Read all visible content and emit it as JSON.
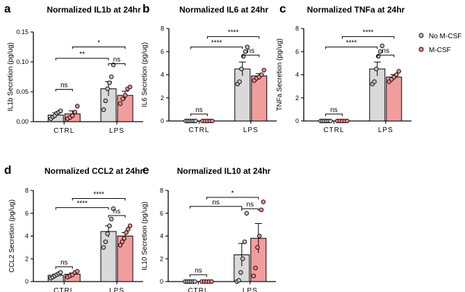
{
  "panels_colors": {
    "no_mcsf_bar": "#d9d9d9",
    "mcsf_bar": "#f29d9d",
    "no_mcsf_dot": "#bfbfbf",
    "mcsf_dot": "#f08a8a",
    "stroke": "#000000"
  },
  "legend": {
    "items": [
      {
        "label": "No M-CSF",
        "color": "#bfbfbf"
      },
      {
        "label": "M-CSF",
        "color": "#f08a8a"
      }
    ]
  },
  "chart_data": [
    {
      "panel": "a",
      "type": "bar",
      "title": "Normalized IL1b at 24hr",
      "ylabel": "IL1b Secretion (pg/ug)",
      "ylim": [
        0,
        0.15
      ],
      "yticks": [
        0,
        0.05,
        0.1,
        0.15
      ],
      "ytick_labels": [
        "0.00",
        "0.05",
        "0.10",
        "0.15"
      ],
      "categories": [
        "CTRL",
        "LPS"
      ],
      "series": [
        {
          "name": "No M-CSF",
          "means": [
            0.011,
            0.055
          ],
          "sem": [
            0.004,
            0.012
          ],
          "points": [
            [
              0.005,
              0.008,
              0.01,
              0.014,
              0.016,
              0.018
            ],
            [
              0.02,
              0.035,
              0.055,
              0.065,
              0.075,
              0.095
            ]
          ]
        },
        {
          "name": "M-CSF",
          "means": [
            0.013,
            0.044
          ],
          "sem": [
            0.005,
            0.007
          ],
          "points": [
            [
              0.005,
              0.007,
              0.01,
              0.016,
              0.026
            ],
            [
              0.03,
              0.038,
              0.044,
              0.055,
              0.058
            ]
          ]
        }
      ],
      "comparisons": [
        {
          "label": "ns",
          "level": 0.054,
          "from": [
            0,
            0
          ],
          "to": [
            0,
            1
          ]
        },
        {
          "label": "ns",
          "level": 0.097,
          "from": [
            1,
            0
          ],
          "to": [
            1,
            1
          ]
        },
        {
          "label": "**",
          "level": 0.106,
          "from": [
            0,
            0
          ],
          "to": [
            1,
            0
          ]
        },
        {
          "label": "*",
          "level": 0.125,
          "from": [
            0,
            1
          ],
          "to": [
            1,
            1
          ]
        }
      ]
    },
    {
      "panel": "b",
      "type": "bar",
      "title": "Normalized IL6 at 24hr",
      "ylabel": "IL6 Secretion (pg/ug)",
      "ylim": [
        0,
        8
      ],
      "yticks": [
        0,
        2,
        4,
        6,
        8
      ],
      "ytick_labels": [
        "0",
        "2",
        "4",
        "6",
        "8"
      ],
      "categories": [
        "CTRL",
        "LPS"
      ],
      "series": [
        {
          "name": "No M-CSF",
          "means": [
            0.0,
            4.5
          ],
          "sem": [
            0.0,
            0.6
          ],
          "points": [
            [
              0,
              0,
              0,
              0,
              0,
              0
            ],
            [
              3.2,
              3.4,
              4.5,
              5.6,
              6.0,
              6.4
            ]
          ]
        },
        {
          "name": "M-CSF",
          "means": [
            0.0,
            3.9
          ],
          "sem": [
            0.0,
            0.2
          ],
          "points": [
            [
              0,
              0,
              0,
              0,
              0
            ],
            [
              3.5,
              3.7,
              3.8,
              4.0,
              4.4
            ]
          ]
        }
      ],
      "comparisons": [
        {
          "label": "ns",
          "level": 0.6,
          "from": [
            0,
            0
          ],
          "to": [
            0,
            1
          ]
        },
        {
          "label": "ns",
          "level": 5.7,
          "from": [
            1,
            0
          ],
          "to": [
            1,
            1
          ]
        },
        {
          "label": "****",
          "level": 6.4,
          "from": [
            0,
            0
          ],
          "to": [
            1,
            0
          ]
        },
        {
          "label": "****",
          "level": 7.3,
          "from": [
            0,
            1
          ],
          "to": [
            1,
            1
          ]
        }
      ]
    },
    {
      "panel": "c",
      "type": "bar",
      "title": "Normalized TNFa at 24hr",
      "ylabel": "TNFa Secretion (pg/ug)",
      "ylim": [
        0,
        8
      ],
      "yticks": [
        0,
        2,
        4,
        6,
        8
      ],
      "ytick_labels": [
        "0",
        "2",
        "4",
        "6",
        "8"
      ],
      "categories": [
        "CTRL",
        "LPS"
      ],
      "series": [
        {
          "name": "No M-CSF",
          "means": [
            0.0,
            4.5
          ],
          "sem": [
            0.0,
            0.6
          ],
          "points": [
            [
              0,
              0,
              0,
              0,
              0,
              0
            ],
            [
              3.2,
              3.4,
              4.5,
              5.6,
              6.0,
              6.5
            ]
          ]
        },
        {
          "name": "M-CSF",
          "means": [
            0.0,
            3.8
          ],
          "sem": [
            0.0,
            0.2
          ],
          "points": [
            [
              0,
              0,
              0,
              0,
              0
            ],
            [
              3.4,
              3.6,
              3.8,
              4.0,
              4.3
            ]
          ]
        }
      ],
      "comparisons": [
        {
          "label": "ns",
          "level": 0.6,
          "from": [
            0,
            0
          ],
          "to": [
            0,
            1
          ]
        },
        {
          "label": "ns",
          "level": 5.7,
          "from": [
            1,
            0
          ],
          "to": [
            1,
            1
          ]
        },
        {
          "label": "****",
          "level": 6.4,
          "from": [
            0,
            0
          ],
          "to": [
            1,
            0
          ]
        },
        {
          "label": "****",
          "level": 7.3,
          "from": [
            0,
            1
          ],
          "to": [
            1,
            1
          ]
        }
      ]
    },
    {
      "panel": "d",
      "type": "bar",
      "title": "Normalized CCL2 at 24hr",
      "ylabel": "CCL2 Secretion (pg/ug)",
      "ylim": [
        0,
        8
      ],
      "yticks": [
        0,
        2,
        4,
        6,
        8
      ],
      "ytick_labels": [
        "0",
        "2",
        "4",
        "6",
        "8"
      ],
      "categories": [
        "CTRL",
        "LPS"
      ],
      "series": [
        {
          "name": "No M-CSF",
          "means": [
            0.55,
            4.4
          ],
          "sem": [
            0.1,
            0.5
          ],
          "points": [
            [
              0.3,
              0.4,
              0.5,
              0.6,
              0.7,
              0.8
            ],
            [
              3.0,
              3.5,
              4.2,
              4.9,
              5.5,
              6.4
            ]
          ]
        },
        {
          "name": "M-CSF",
          "means": [
            0.65,
            4.0
          ],
          "sem": [
            0.1,
            0.3
          ],
          "points": [
            [
              0.4,
              0.5,
              0.6,
              0.8,
              0.9
            ],
            [
              3.2,
              3.5,
              3.8,
              4.3,
              4.6,
              4.9
            ]
          ]
        }
      ],
      "comparisons": [
        {
          "label": "ns",
          "level": 1.3,
          "from": [
            0,
            0
          ],
          "to": [
            0,
            1
          ]
        },
        {
          "label": "ns",
          "level": 5.8,
          "from": [
            1,
            0
          ],
          "to": [
            1,
            1
          ]
        },
        {
          "label": "****",
          "level": 6.5,
          "from": [
            0,
            0
          ],
          "to": [
            1,
            0
          ]
        },
        {
          "label": "****",
          "level": 7.3,
          "from": [
            0,
            1
          ],
          "to": [
            1,
            1
          ]
        }
      ]
    },
    {
      "panel": "e",
      "type": "bar",
      "title": "Normalized IL10 at 24hr",
      "ylabel": "IL10 Secretion (pg/ug)",
      "ylim": [
        0,
        8
      ],
      "yticks": [
        0,
        2,
        4,
        6,
        8
      ],
      "ytick_labels": [
        "0",
        "2",
        "4",
        "6",
        "8"
      ],
      "categories": [
        "CTRL",
        "LPS"
      ],
      "series": [
        {
          "name": "No M-CSF",
          "means": [
            0.0,
            2.35
          ],
          "sem": [
            0.0,
            1.0
          ],
          "points": [
            [
              0,
              0,
              0,
              0,
              0,
              0
            ],
            [
              0.0,
              0.1,
              0.8,
              2.0,
              3.5,
              6.0
            ]
          ]
        },
        {
          "name": "M-CSF",
          "means": [
            0.0,
            3.8
          ],
          "sem": [
            0.0,
            1.3
          ],
          "points": [
            [
              0,
              0,
              0,
              0,
              0
            ],
            [
              0.5,
              1.2,
              3.0,
              4.0,
              6.3,
              7.0
            ]
          ]
        }
      ],
      "comparisons": [
        {
          "label": "ns",
          "level": 0.6,
          "from": [
            0,
            0
          ],
          "to": [
            0,
            1
          ]
        },
        {
          "label": "ns",
          "level": 6.4,
          "from": [
            1,
            0
          ],
          "to": [
            1,
            1
          ]
        },
        {
          "label": "ns",
          "level": 6.6,
          "from": [
            0,
            0
          ],
          "to": [
            1,
            0
          ]
        },
        {
          "label": "*",
          "level": 7.4,
          "from": [
            0,
            1
          ],
          "to": [
            1,
            1
          ]
        }
      ]
    }
  ]
}
